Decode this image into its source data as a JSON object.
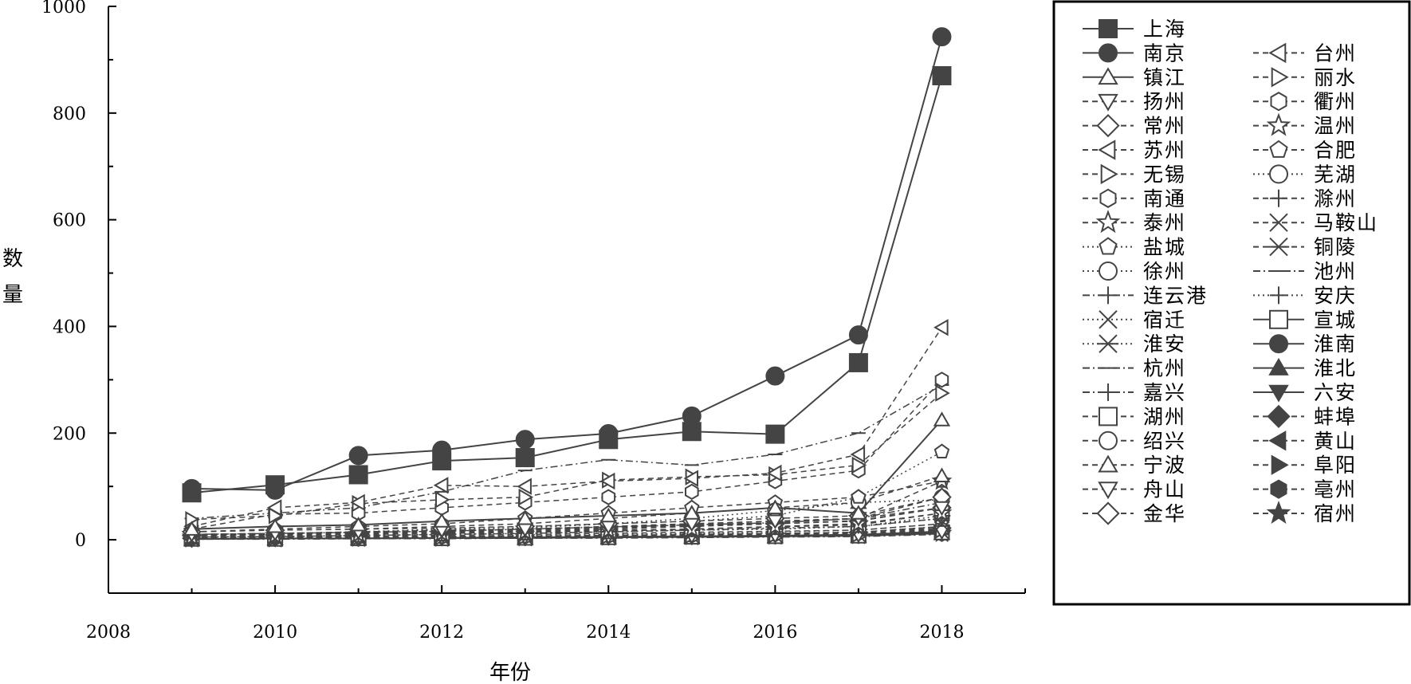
{
  "chart_data": {
    "type": "line",
    "xlabel": "年份",
    "ylabel": "数量",
    "xlim": [
      2008,
      2019
    ],
    "ylim": [
      -100,
      1000
    ],
    "xticks": [
      2008,
      2010,
      2012,
      2014,
      2016,
      2018
    ],
    "yticks": [
      0,
      200,
      400,
      600,
      800,
      1000
    ],
    "grid": false,
    "legend": "right",
    "x": [
      2009,
      2010,
      2011,
      2012,
      2013,
      2014,
      2015,
      2016,
      2017,
      2018
    ],
    "series": [
      {
        "name": "上海",
        "marker": "square-filled",
        "dash": "solid",
        "values": [
          88,
          103,
          122,
          148,
          154,
          188,
          203,
          198,
          332,
          870
        ]
      },
      {
        "name": "南京",
        "marker": "circle-filled",
        "dash": "solid",
        "values": [
          96,
          93,
          158,
          168,
          188,
          199,
          232,
          307,
          384,
          943
        ]
      },
      {
        "name": "镇江",
        "marker": "triangle-up",
        "dash": "solid",
        "values": [
          20,
          25,
          28,
          35,
          40,
          45,
          50,
          60,
          50,
          225
        ]
      },
      {
        "name": "扬州",
        "marker": "triangle-down",
        "dash": "dash",
        "values": [
          10,
          12,
          15,
          18,
          20,
          25,
          30,
          35,
          40,
          60
        ]
      },
      {
        "name": "常州",
        "marker": "diamond",
        "dash": "dash",
        "values": [
          15,
          18,
          20,
          22,
          25,
          30,
          35,
          40,
          45,
          80
        ]
      },
      {
        "name": "苏州",
        "marker": "triangle-left",
        "dash": "dash",
        "values": [
          25,
          60,
          70,
          102,
          100,
          110,
          115,
          125,
          160,
          398
        ]
      },
      {
        "name": "无锡",
        "marker": "triangle-right",
        "dash": "dash",
        "values": [
          38,
          45,
          68,
          75,
          80,
          112,
          118,
          122,
          140,
          275
        ]
      },
      {
        "name": "南通",
        "marker": "hexagon",
        "dash": "dash",
        "values": [
          20,
          48,
          50,
          60,
          70,
          80,
          90,
          110,
          130,
          300
        ]
      },
      {
        "name": "泰州",
        "marker": "star",
        "dash": "dash",
        "values": [
          5,
          8,
          10,
          12,
          15,
          18,
          20,
          25,
          30,
          50
        ]
      },
      {
        "name": "盐城",
        "marker": "pentagon",
        "dash": "dot",
        "values": [
          10,
          12,
          15,
          20,
          25,
          30,
          35,
          45,
          80,
          165
        ]
      },
      {
        "name": "徐州",
        "marker": "circle",
        "dash": "dot",
        "values": [
          8,
          10,
          15,
          18,
          22,
          30,
          40,
          55,
          70,
          75
        ]
      },
      {
        "name": "连云港",
        "marker": "plus",
        "dash": "dashdot",
        "values": [
          5,
          6,
          8,
          10,
          12,
          15,
          18,
          22,
          25,
          40
        ]
      },
      {
        "name": "宿迁",
        "marker": "x",
        "dash": "dot",
        "values": [
          3,
          4,
          5,
          6,
          8,
          10,
          12,
          15,
          18,
          30
        ]
      },
      {
        "name": "淮安",
        "marker": "asterisk",
        "dash": "dot",
        "values": [
          5,
          6,
          8,
          10,
          12,
          15,
          18,
          20,
          25,
          45
        ]
      },
      {
        "name": "杭州",
        "marker": "hbar",
        "dash": "dashdot",
        "values": [
          40,
          50,
          60,
          90,
          130,
          150,
          140,
          160,
          200,
          290
        ]
      },
      {
        "name": "嘉兴",
        "marker": "vline",
        "dash": "dashdot",
        "values": [
          10,
          12,
          14,
          16,
          20,
          24,
          28,
          32,
          40,
          70
        ]
      },
      {
        "name": "湖州",
        "marker": "square-plus",
        "dash": "dash",
        "values": [
          6,
          8,
          10,
          12,
          14,
          16,
          20,
          24,
          28,
          50
        ]
      },
      {
        "name": "绍兴",
        "marker": "circle-x",
        "dash": "dash",
        "values": [
          10,
          12,
          14,
          16,
          20,
          24,
          28,
          32,
          40,
          80
        ]
      },
      {
        "name": "宁波",
        "marker": "triangle-up-big",
        "dash": "dash",
        "values": [
          15,
          18,
          20,
          25,
          30,
          40,
          50,
          60,
          70,
          120
        ]
      },
      {
        "name": "舟山",
        "marker": "triangle-down-x",
        "dash": "dash",
        "values": [
          2,
          3,
          3,
          4,
          5,
          6,
          7,
          8,
          9,
          15
        ]
      },
      {
        "name": "金华",
        "marker": "diamond",
        "dash": "dash",
        "values": [
          8,
          10,
          12,
          14,
          16,
          20,
          25,
          30,
          35,
          60
        ]
      },
      {
        "name": "台州",
        "marker": "triangle-left",
        "dash": "dash",
        "values": [
          8,
          10,
          12,
          14,
          18,
          22,
          26,
          30,
          36,
          60
        ]
      },
      {
        "name": "丽水",
        "marker": "triangle-right",
        "dash": "dash",
        "values": [
          2,
          3,
          4,
          5,
          6,
          7,
          8,
          9,
          10,
          18
        ]
      },
      {
        "name": "衢州",
        "marker": "hexagon",
        "dash": "dash",
        "values": [
          2,
          3,
          4,
          5,
          6,
          7,
          8,
          10,
          12,
          20
        ]
      },
      {
        "name": "温州",
        "marker": "star",
        "dash": "dash",
        "values": [
          10,
          12,
          14,
          16,
          20,
          25,
          30,
          35,
          40,
          110
        ]
      },
      {
        "name": "合肥",
        "marker": "pentagon-plus",
        "dash": "dash",
        "values": [
          15,
          20,
          25,
          30,
          40,
          50,
          60,
          70,
          80,
          110
        ]
      },
      {
        "name": "芜湖",
        "marker": "circle",
        "dash": "dot",
        "values": [
          5,
          6,
          8,
          10,
          12,
          15,
          18,
          20,
          25,
          40
        ]
      },
      {
        "name": "滁州",
        "marker": "plus",
        "dash": "dash",
        "values": [
          3,
          4,
          5,
          6,
          7,
          8,
          10,
          12,
          14,
          25
        ]
      },
      {
        "name": "马鞍山",
        "marker": "x",
        "dash": "dash",
        "values": [
          5,
          6,
          7,
          8,
          10,
          12,
          14,
          16,
          18,
          30
        ]
      },
      {
        "name": "铜陵",
        "marker": "asterisk",
        "dash": "dash",
        "values": [
          2,
          3,
          3,
          4,
          5,
          6,
          7,
          8,
          9,
          15
        ]
      },
      {
        "name": "池州",
        "marker": "hbar",
        "dash": "dashdot",
        "values": [
          1,
          1,
          2,
          2,
          3,
          3,
          4,
          5,
          6,
          10
        ]
      },
      {
        "name": "安庆",
        "marker": "vline",
        "dash": "dot",
        "values": [
          3,
          4,
          5,
          6,
          7,
          8,
          10,
          12,
          14,
          25
        ]
      },
      {
        "name": "宣城",
        "marker": "square-half",
        "dash": "solid",
        "values": [
          2,
          2,
          3,
          3,
          4,
          5,
          6,
          7,
          8,
          14
        ]
      },
      {
        "name": "淮南",
        "marker": "circle-half",
        "dash": "solid",
        "values": [
          2,
          3,
          3,
          4,
          5,
          6,
          7,
          8,
          10,
          16
        ]
      },
      {
        "name": "淮北",
        "marker": "triangle-up-half",
        "dash": "solid",
        "values": [
          1,
          2,
          2,
          3,
          3,
          4,
          5,
          6,
          7,
          12
        ]
      },
      {
        "name": "六安",
        "marker": "triangle-down-half",
        "dash": "solid",
        "values": [
          2,
          2,
          3,
          3,
          4,
          5,
          6,
          7,
          8,
          14
        ]
      },
      {
        "name": "蚌埠",
        "marker": "diamond-half",
        "dash": "dash",
        "values": [
          3,
          4,
          5,
          6,
          7,
          8,
          10,
          12,
          14,
          22
        ]
      },
      {
        "name": "黄山",
        "marker": "triangle-left-half",
        "dash": "dash",
        "values": [
          2,
          2,
          3,
          3,
          4,
          5,
          6,
          7,
          8,
          13
        ]
      },
      {
        "name": "阜阳",
        "marker": "triangle-right-half",
        "dash": "dash",
        "values": [
          3,
          3,
          4,
          5,
          6,
          7,
          8,
          9,
          10,
          18
        ]
      },
      {
        "name": "亳州",
        "marker": "hexagon-half",
        "dash": "dash",
        "values": [
          1,
          2,
          2,
          3,
          3,
          4,
          5,
          6,
          7,
          11
        ]
      },
      {
        "name": "宿州",
        "marker": "star-filled",
        "dash": "dash",
        "values": [
          2,
          2,
          3,
          3,
          4,
          5,
          6,
          7,
          8,
          12
        ]
      }
    ]
  }
}
